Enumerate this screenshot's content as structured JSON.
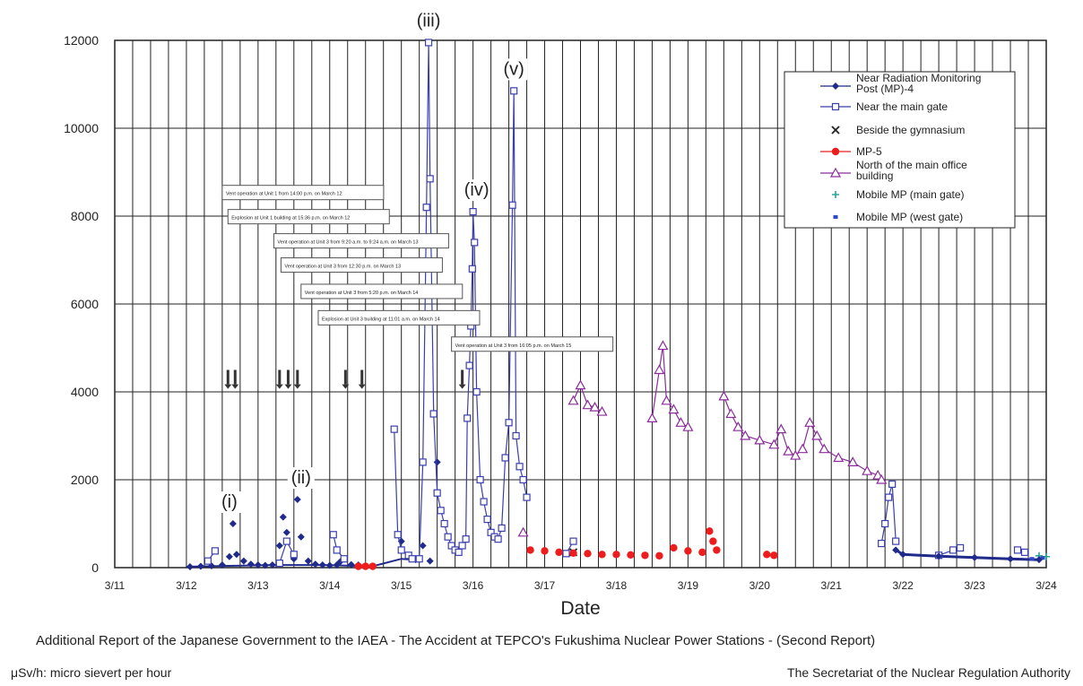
{
  "page": {
    "title_fragment": "",
    "source_line": "Additional Report of the Japanese Government to the IAEA - The Accident at TEPCO's Fukushima Nuclear Power Stations - (Second Report)",
    "units_note": "μSv/h: micro sievert per hour",
    "authority": "The Secretariat of the Nuclear Regulation Authority"
  },
  "chart_data": {
    "type": "scatter",
    "title": "",
    "xlabel": "Date",
    "ylabel": "",
    "x_is_date": true,
    "xlim": [
      "3/11",
      "3/24"
    ],
    "ylim": [
      0,
      12000
    ],
    "yticks": [
      0,
      2000,
      4000,
      6000,
      8000,
      10000,
      12000
    ],
    "xtick_labels": [
      "3/11",
      "3/12",
      "3/13",
      "3/14",
      "3/15",
      "3/16",
      "3/17",
      "3/18",
      "3/19",
      "3/20",
      "3/21",
      "3/22",
      "3/23",
      "3/24"
    ],
    "grid": true,
    "legend_position": "top-right",
    "colors": {
      "mp4": "#1f2a8a",
      "gate": "#3a3fae",
      "gym": "#222222",
      "mp5": "#ee1c1c",
      "north": "#8a2e9a",
      "mobile_main": "#2aa59a",
      "mobile_west": "#2f48c8"
    },
    "series": [
      {
        "id": "mp4",
        "name": "Near Radiation Monitoring Post (MP)-4",
        "marker": "diamond",
        "points": [
          [
            12.05,
            20
          ],
          [
            12.2,
            30
          ],
          [
            12.35,
            40
          ],
          [
            12.5,
            60
          ],
          [
            12.6,
            250
          ],
          [
            12.65,
            1000
          ],
          [
            12.7,
            300
          ],
          [
            12.8,
            150
          ],
          [
            12.9,
            80
          ],
          [
            13.0,
            60
          ],
          [
            13.1,
            50
          ],
          [
            13.2,
            60
          ],
          [
            13.3,
            500
          ],
          [
            13.35,
            1150
          ],
          [
            13.4,
            800
          ],
          [
            13.5,
            200
          ],
          [
            13.55,
            1550
          ],
          [
            13.6,
            700
          ],
          [
            13.7,
            150
          ],
          [
            13.8,
            80
          ],
          [
            13.9,
            60
          ],
          [
            14.0,
            50
          ],
          [
            14.1,
            60
          ],
          [
            14.15,
            140
          ],
          [
            14.3,
            70
          ],
          [
            14.4,
            60
          ],
          [
            14.5,
            40
          ],
          [
            14.6,
            30
          ],
          [
            15.0,
            600
          ],
          [
            15.1,
            250
          ],
          [
            15.2,
            180
          ],
          [
            15.3,
            500
          ],
          [
            15.4,
            150
          ],
          [
            15.5,
            2400
          ],
          [
            15.55,
            1300
          ]
        ]
      },
      {
        "id": "gate",
        "name": "Near the main gate",
        "marker": "square-open",
        "points": [
          [
            12.3,
            150
          ],
          [
            12.4,
            380
          ],
          [
            13.3,
            100
          ],
          [
            13.4,
            600
          ],
          [
            13.5,
            300
          ],
          [
            14.05,
            750
          ],
          [
            14.1,
            400
          ],
          [
            14.2,
            200
          ],
          [
            14.9,
            3150
          ],
          [
            14.95,
            750
          ],
          [
            15.0,
            400
          ],
          [
            15.1,
            280
          ],
          [
            15.15,
            200
          ],
          [
            15.25,
            200
          ],
          [
            15.3,
            2400
          ],
          [
            15.35,
            8200
          ],
          [
            15.38,
            11950
          ],
          [
            15.4,
            8850
          ],
          [
            15.45,
            3500
          ],
          [
            15.5,
            1700
          ],
          [
            15.55,
            1300
          ],
          [
            15.6,
            1000
          ],
          [
            15.65,
            700
          ],
          [
            15.7,
            500
          ],
          [
            15.75,
            400
          ],
          [
            15.8,
            350
          ],
          [
            15.85,
            500
          ],
          [
            15.9,
            650
          ],
          [
            15.92,
            3400
          ],
          [
            15.95,
            4600
          ],
          [
            15.97,
            5500
          ],
          [
            15.99,
            6800
          ],
          [
            16.0,
            8100
          ],
          [
            16.02,
            7400
          ],
          [
            16.05,
            4000
          ],
          [
            16.1,
            2000
          ],
          [
            16.15,
            1500
          ],
          [
            16.2,
            1100
          ],
          [
            16.25,
            800
          ],
          [
            16.3,
            700
          ],
          [
            16.35,
            650
          ],
          [
            16.4,
            900
          ],
          [
            16.45,
            2500
          ],
          [
            16.5,
            3300
          ],
          [
            16.55,
            8250
          ],
          [
            16.57,
            10850
          ],
          [
            16.6,
            3000
          ],
          [
            16.65,
            2300
          ],
          [
            16.7,
            2000
          ],
          [
            16.75,
            1600
          ],
          [
            17.3,
            320
          ],
          [
            17.4,
            600
          ],
          [
            21.7,
            550
          ],
          [
            21.75,
            1000
          ],
          [
            21.8,
            1600
          ],
          [
            21.85,
            1900
          ],
          [
            21.9,
            600
          ],
          [
            22.5,
            280
          ],
          [
            22.7,
            400
          ],
          [
            22.8,
            450
          ],
          [
            23.6,
            400
          ],
          [
            23.7,
            350
          ]
        ]
      },
      {
        "id": "gym",
        "name": "Beside the gymnasium",
        "marker": "x",
        "points": [
          [
            17.4,
            350
          ]
        ]
      },
      {
        "id": "mp5",
        "name": "MP-5",
        "marker": "circle",
        "points": [
          [
            14.4,
            30
          ],
          [
            14.5,
            30
          ],
          [
            14.6,
            30
          ],
          [
            16.8,
            400
          ],
          [
            17.0,
            380
          ],
          [
            17.2,
            350
          ],
          [
            17.4,
            330
          ],
          [
            17.6,
            320
          ],
          [
            17.8,
            300
          ],
          [
            18.0,
            300
          ],
          [
            18.2,
            290
          ],
          [
            18.4,
            280
          ],
          [
            18.6,
            270
          ],
          [
            18.8,
            450
          ],
          [
            19.0,
            380
          ],
          [
            19.2,
            350
          ],
          [
            19.3,
            830
          ],
          [
            19.35,
            600
          ],
          [
            19.4,
            400
          ],
          [
            20.1,
            300
          ],
          [
            20.2,
            280
          ]
        ]
      },
      {
        "id": "north",
        "name": "North of the main office building",
        "marker": "triangle-open",
        "points": [
          [
            16.7,
            800
          ],
          [
            17.4,
            3800
          ],
          [
            17.5,
            4150
          ],
          [
            17.6,
            3700
          ],
          [
            17.7,
            3650
          ],
          [
            17.8,
            3550
          ],
          [
            18.5,
            3400
          ],
          [
            18.6,
            4500
          ],
          [
            18.65,
            5050
          ],
          [
            18.7,
            3800
          ],
          [
            18.8,
            3600
          ],
          [
            18.9,
            3300
          ],
          [
            19.0,
            3200
          ],
          [
            19.5,
            3900
          ],
          [
            19.6,
            3500
          ],
          [
            19.7,
            3200
          ],
          [
            19.8,
            3000
          ],
          [
            20.0,
            2900
          ],
          [
            20.2,
            2800
          ],
          [
            20.3,
            3150
          ],
          [
            20.4,
            2650
          ],
          [
            20.5,
            2550
          ],
          [
            20.6,
            2700
          ],
          [
            20.7,
            3300
          ],
          [
            20.8,
            3000
          ],
          [
            20.9,
            2700
          ],
          [
            21.1,
            2500
          ],
          [
            21.3,
            2400
          ],
          [
            21.5,
            2200
          ],
          [
            21.65,
            2100
          ],
          [
            21.7,
            2000
          ]
        ]
      },
      {
        "id": "mobile_main",
        "name": "Mobile MP (main gate)",
        "marker": "plus",
        "points": [
          [
            23.9,
            270
          ],
          [
            24.0,
            250
          ]
        ]
      },
      {
        "id": "mobile_west",
        "name": "Mobile MP (west gate)",
        "marker": "dash",
        "points": [
          [
            23.8,
            200
          ],
          [
            23.95,
            220
          ]
        ]
      }
    ],
    "mp4_tail": [
      [
        21.9,
        400
      ],
      [
        22.0,
        300
      ],
      [
        22.5,
        260
      ],
      [
        23.0,
        230
      ],
      [
        23.5,
        200
      ],
      [
        23.9,
        180
      ]
    ],
    "annotations": [
      {
        "label": "(i)",
        "x": 12.6
      },
      {
        "label": "(ii)",
        "x": 13.6
      },
      {
        "label": "(iii)",
        "x": 15.38
      },
      {
        "label": "(iv)",
        "x": 16.05
      },
      {
        "label": "(v)",
        "x": 16.57
      }
    ],
    "event_boxes": [
      "Vent operation at Unit 1 from 14:00 p.m. on March 12",
      "Explosion at Unit 1 building at 15:36 p.m. on March 12",
      "Vent operation at Unit 3 from 9:20 a.m. to 9:24 a.m. on March 13",
      "Vent operation at Unit 3 from 12:30 p.m. on March 13",
      "Vent operation at Unit 3 from 5:20 p.m. on March 14",
      "Explosion at Unit 3 building at 11:01 a.m. on March 14",
      "Vent operation at Unit 3 from 16:05 p.m. on March 15"
    ],
    "event_arrows_x": [
      12.58,
      12.68,
      13.3,
      13.42,
      13.55,
      14.22,
      14.45,
      15.85
    ]
  }
}
